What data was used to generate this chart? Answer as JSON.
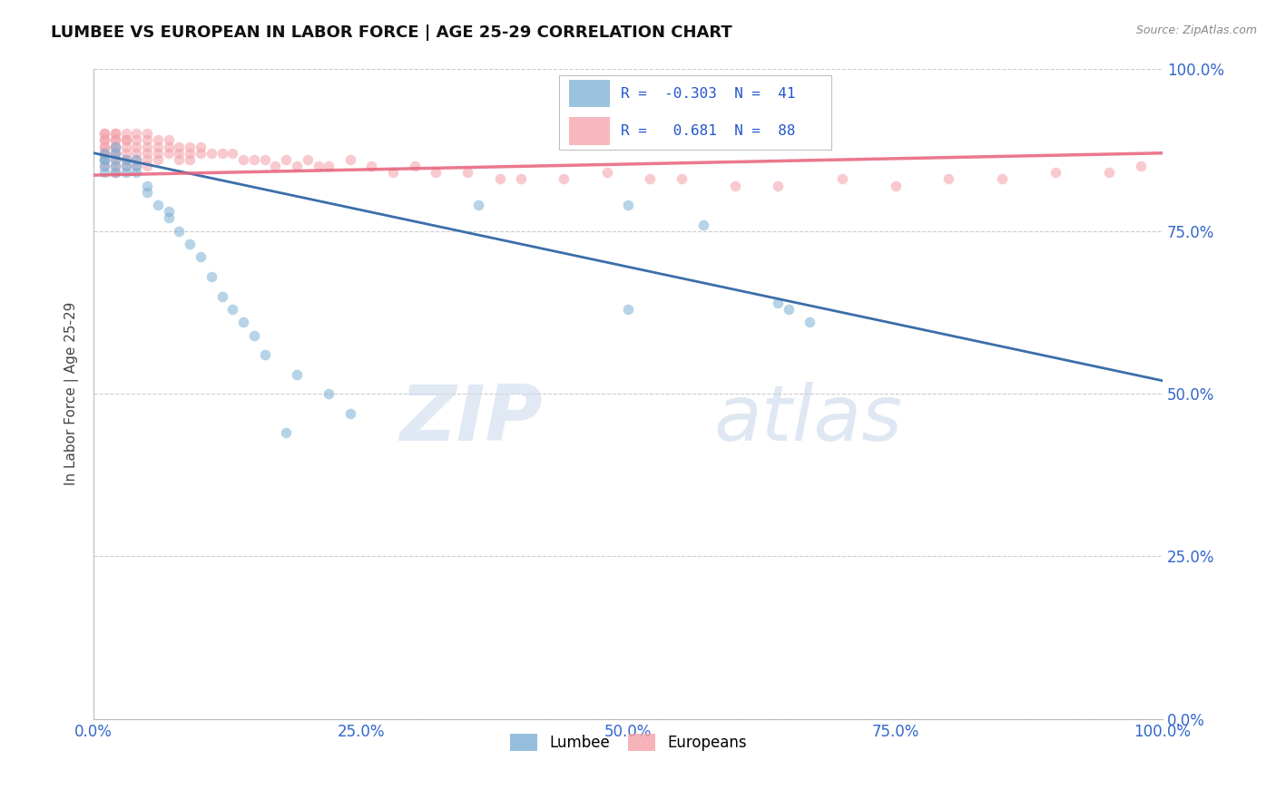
{
  "title": "LUMBEE VS EUROPEAN IN LABOR FORCE | AGE 25-29 CORRELATION CHART",
  "source_text": "Source: ZipAtlas.com",
  "ylabel": "In Labor Force | Age 25-29",
  "xlim": [
    0.0,
    1.0
  ],
  "ylim": [
    0.0,
    1.0
  ],
  "xticks": [
    0.0,
    0.25,
    0.5,
    0.75,
    1.0
  ],
  "yticks": [
    0.0,
    0.25,
    0.5,
    0.75,
    1.0
  ],
  "xticklabels": [
    "0.0%",
    "25.0%",
    "50.0%",
    "75.0%",
    "100.0%"
  ],
  "yticklabels": [
    "0.0%",
    "25.0%",
    "50.0%",
    "75.0%",
    "100.0%"
  ],
  "lumbee_color": "#7BAFD4",
  "european_color": "#F4A0A8",
  "lumbee_line_color": "#3B6EAA",
  "european_line_color": "#E8607A",
  "watermark_color": "#D0DFF0",
  "r_lumbee": "-0.303",
  "n_lumbee": "41",
  "r_european": "0.681",
  "n_european": "88",
  "legend_r_color": "#2255CC",
  "marker_size": 70,
  "alpha": 0.55,
  "lumbee_x": [
    0.01,
    0.01,
    0.01,
    0.01,
    0.01,
    0.02,
    0.02,
    0.02,
    0.02,
    0.02,
    0.03,
    0.03,
    0.03,
    0.04,
    0.04,
    0.04,
    0.05,
    0.05,
    0.06,
    0.07,
    0.07,
    0.08,
    0.09,
    0.1,
    0.11,
    0.12,
    0.13,
    0.14,
    0.15,
    0.16,
    0.19,
    0.22,
    0.24,
    0.36,
    0.5,
    0.57,
    0.64,
    0.65,
    0.67,
    0.5,
    0.18
  ],
  "lumbee_y": [
    0.87,
    0.86,
    0.86,
    0.85,
    0.84,
    0.88,
    0.87,
    0.86,
    0.85,
    0.84,
    0.86,
    0.85,
    0.84,
    0.86,
    0.85,
    0.84,
    0.82,
    0.81,
    0.79,
    0.78,
    0.77,
    0.75,
    0.73,
    0.71,
    0.68,
    0.65,
    0.63,
    0.61,
    0.59,
    0.56,
    0.53,
    0.5,
    0.47,
    0.79,
    0.79,
    0.76,
    0.64,
    0.63,
    0.61,
    0.63,
    0.44
  ],
  "european_x": [
    0.01,
    0.01,
    0.01,
    0.01,
    0.01,
    0.01,
    0.01,
    0.01,
    0.01,
    0.01,
    0.02,
    0.02,
    0.02,
    0.02,
    0.02,
    0.02,
    0.02,
    0.02,
    0.02,
    0.02,
    0.02,
    0.03,
    0.03,
    0.03,
    0.03,
    0.03,
    0.03,
    0.03,
    0.04,
    0.04,
    0.04,
    0.04,
    0.04,
    0.04,
    0.05,
    0.05,
    0.05,
    0.05,
    0.05,
    0.05,
    0.06,
    0.06,
    0.06,
    0.06,
    0.07,
    0.07,
    0.07,
    0.08,
    0.08,
    0.08,
    0.09,
    0.09,
    0.09,
    0.1,
    0.1,
    0.11,
    0.12,
    0.13,
    0.14,
    0.15,
    0.16,
    0.17,
    0.18,
    0.19,
    0.2,
    0.21,
    0.22,
    0.24,
    0.26,
    0.28,
    0.3,
    0.32,
    0.35,
    0.38,
    0.4,
    0.44,
    0.48,
    0.52,
    0.55,
    0.6,
    0.64,
    0.7,
    0.75,
    0.8,
    0.85,
    0.9,
    0.95,
    0.98
  ],
  "european_y": [
    0.9,
    0.9,
    0.89,
    0.89,
    0.88,
    0.88,
    0.87,
    0.87,
    0.86,
    0.85,
    0.9,
    0.9,
    0.89,
    0.89,
    0.88,
    0.88,
    0.87,
    0.87,
    0.86,
    0.85,
    0.84,
    0.9,
    0.89,
    0.89,
    0.88,
    0.87,
    0.86,
    0.85,
    0.9,
    0.89,
    0.88,
    0.87,
    0.86,
    0.85,
    0.9,
    0.89,
    0.88,
    0.87,
    0.86,
    0.85,
    0.89,
    0.88,
    0.87,
    0.86,
    0.89,
    0.88,
    0.87,
    0.88,
    0.87,
    0.86,
    0.88,
    0.87,
    0.86,
    0.88,
    0.87,
    0.87,
    0.87,
    0.87,
    0.86,
    0.86,
    0.86,
    0.85,
    0.86,
    0.85,
    0.86,
    0.85,
    0.85,
    0.86,
    0.85,
    0.84,
    0.85,
    0.84,
    0.84,
    0.83,
    0.83,
    0.83,
    0.84,
    0.83,
    0.83,
    0.82,
    0.82,
    0.83,
    0.82,
    0.83,
    0.83,
    0.84,
    0.84,
    0.85
  ],
  "lumbee_trendline_x": [
    0.0,
    1.0
  ],
  "lumbee_trendline_y": [
    0.87,
    0.52
  ],
  "european_trendline_x": [
    0.0,
    1.0
  ],
  "european_trendline_y": [
    0.836,
    0.87
  ]
}
